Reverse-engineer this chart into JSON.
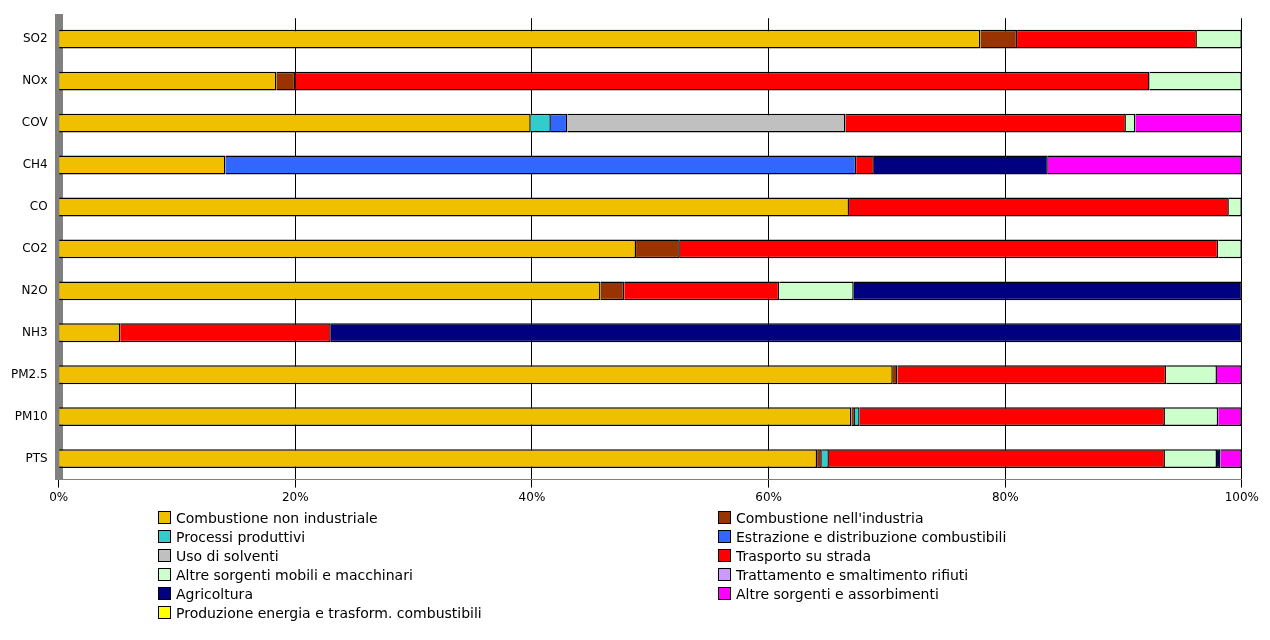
{
  "chart_data": {
    "type": "bar",
    "orientation": "horizontal",
    "stacked": true,
    "categories": [
      "SO2",
      "NOx",
      "COV",
      "CH4",
      "CO",
      "CO2",
      "N2O",
      "NH3",
      "PM2.5",
      "PM10",
      "PTS"
    ],
    "series": [
      {
        "name": "Combustione non industriale",
        "color": "#f0c000",
        "values": [
          77.9,
          18.4,
          39.9,
          14.1,
          66.8,
          48.8,
          45.8,
          5.2,
          70.5,
          67.0,
          64.1
        ]
      },
      {
        "name": "Combustione nell'industria",
        "color": "#993300",
        "values": [
          3.1,
          1.6,
          0,
          0,
          0,
          3.7,
          2.0,
          0,
          0.4,
          0.3,
          0.4
        ]
      },
      {
        "name": "Processi produttivi",
        "color": "#33cccc",
        "values": [
          0,
          0,
          1.7,
          0,
          0,
          0,
          0,
          0,
          0,
          0.4,
          0.6
        ]
      },
      {
        "name": "Estrazione e distribuzione combustibili",
        "color": "#3366ff",
        "values": [
          0,
          0,
          1.4,
          53.3,
          0,
          0,
          0,
          0,
          0,
          0,
          0
        ]
      },
      {
        "name": "Uso di solventi",
        "color": "#c0c0c0",
        "values": [
          0,
          0,
          23.5,
          0,
          0,
          0,
          0,
          0,
          0,
          0,
          0
        ]
      },
      {
        "name": "Trasporto su strada",
        "color": "#ff0000",
        "values": [
          15.2,
          72.2,
          23.7,
          1.5,
          32.1,
          45.5,
          13.1,
          17.8,
          22.7,
          25.8,
          28.4
        ]
      },
      {
        "name": "Altre sorgenti mobili e macchinari",
        "color": "#ccffcc",
        "values": [
          3.8,
          7.8,
          0.8,
          0,
          1.1,
          2.0,
          6.3,
          0,
          4.3,
          4.5,
          4.4
        ]
      },
      {
        "name": "Trattamento e smaltimento rifiuti",
        "color": "#cc99ff",
        "values": [
          0,
          0,
          0,
          0,
          0,
          0,
          0,
          0,
          0,
          0,
          0
        ]
      },
      {
        "name": "Agricoltura",
        "color": "#000080",
        "values": [
          0,
          0,
          0,
          14.7,
          0,
          0,
          32.8,
          77.0,
          0,
          0,
          0.3
        ]
      },
      {
        "name": "Altre sorgenti e assorbimenti",
        "color": "#ff00ff",
        "values": [
          0,
          0,
          9.0,
          16.4,
          0,
          0,
          0,
          0,
          2.1,
          2.0,
          1.8
        ]
      },
      {
        "name": "Produzione energia e trasform. combustibili",
        "color": "#ffff00",
        "values": [
          0,
          0,
          0,
          0,
          0,
          0,
          0,
          0,
          0,
          0,
          0
        ]
      }
    ],
    "xlim": [
      0,
      100
    ],
    "xticks": [
      {
        "value": 0,
        "label": "0%"
      },
      {
        "value": 20,
        "label": "20%"
      },
      {
        "value": 40,
        "label": "40%"
      },
      {
        "value": 60,
        "label": "60%"
      },
      {
        "value": 80,
        "label": "80%"
      },
      {
        "value": 100,
        "label": "100%"
      }
    ],
    "grid": "x",
    "legend": "bottom"
  }
}
